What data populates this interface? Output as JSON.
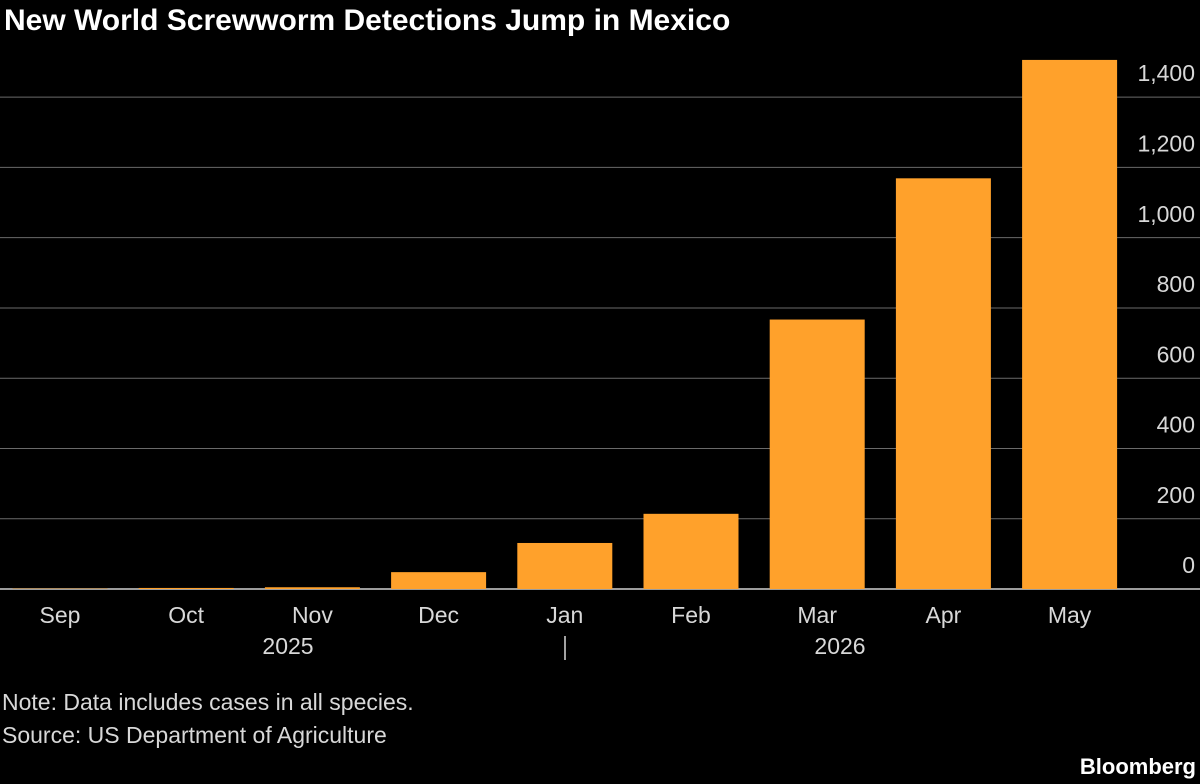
{
  "chart_data": {
    "type": "bar",
    "title": "New World Screwworm Detections Jump in Mexico",
    "categories": [
      "Sep",
      "Oct",
      "Nov",
      "Dec",
      "Jan",
      "Feb",
      "Mar",
      "Apr",
      "May"
    ],
    "values": [
      1,
      3,
      5,
      48,
      131,
      214,
      767,
      1169,
      1506
    ],
    "color": "#ffa12b",
    "years": [
      "2025",
      "2026"
    ],
    "ylim": [
      0,
      1520
    ],
    "yticks": [
      0,
      200,
      400,
      600,
      800,
      {
        "value": 1000,
        "label": "1,000"
      },
      {
        "value": 1200,
        "label": "1,200"
      },
      {
        "value": 1400,
        "label": "1,400"
      }
    ],
    "grid": true,
    "note": "Note: Data includes cases in all species.",
    "source": "Source: US Department of Agriculture",
    "brand": "Bloomberg"
  }
}
